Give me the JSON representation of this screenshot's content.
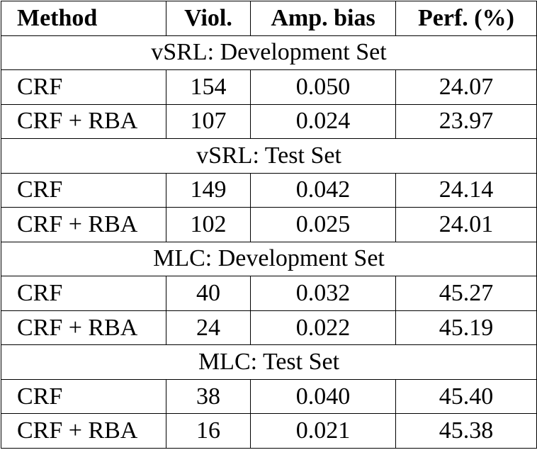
{
  "table": {
    "header": [
      "Method",
      "Viol.",
      "Amp. bias",
      "Perf. (%)"
    ],
    "sections": [
      {
        "title": "vSRL: Development Set",
        "rows": [
          [
            "CRF",
            "154",
            "0.050",
            "24.07"
          ],
          [
            "CRF + RBA",
            "107",
            "0.024",
            "23.97"
          ]
        ]
      },
      {
        "title": "vSRL: Test Set",
        "rows": [
          [
            "CRF",
            "149",
            "0.042",
            "24.14"
          ],
          [
            "CRF + RBA",
            "102",
            "0.025",
            "24.01"
          ]
        ]
      },
      {
        "title": "MLC: Development Set",
        "rows": [
          [
            "CRF",
            "40",
            "0.032",
            "45.27"
          ],
          [
            "CRF + RBA",
            "24",
            "0.022",
            "45.19"
          ]
        ]
      },
      {
        "title": "MLC: Test Set",
        "rows": [
          [
            "CRF",
            "38",
            "0.040",
            "45.40"
          ],
          [
            "CRF + RBA",
            "16",
            "0.021",
            "45.38"
          ]
        ]
      }
    ]
  }
}
